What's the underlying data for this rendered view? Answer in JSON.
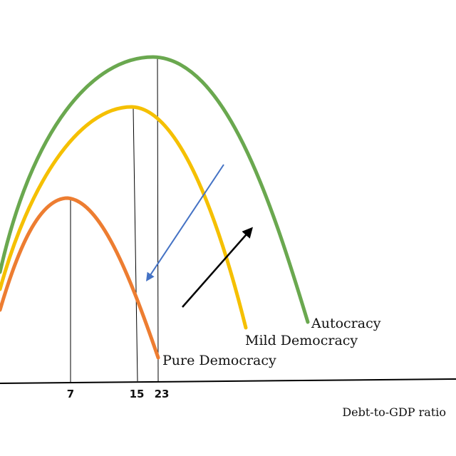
{
  "chart_data": {
    "type": "line",
    "title": "",
    "xlabel": "Debt-to-GDP ratio",
    "ylabel": "",
    "x_ticks": [
      "7",
      "15",
      "23"
    ],
    "series": [
      {
        "name": "Autocracy",
        "color": "#6aa84f",
        "peak_x": 23,
        "peak_relative_height": 1.0
      },
      {
        "name": "Mild Democracy",
        "color": "#f5c000",
        "peak_x": 15,
        "peak_relative_height": 0.84
      },
      {
        "name": "Pure Democracy",
        "color": "#ed7d31",
        "peak_x": 7,
        "peak_relative_height": 0.56
      }
    ],
    "annotations": [
      {
        "type": "arrow",
        "direction": "down-left",
        "color": "#4472c4"
      },
      {
        "type": "arrow",
        "direction": "up-right",
        "color": "#000000"
      }
    ],
    "grid": false,
    "legend": "inline labels at curve ends"
  }
}
